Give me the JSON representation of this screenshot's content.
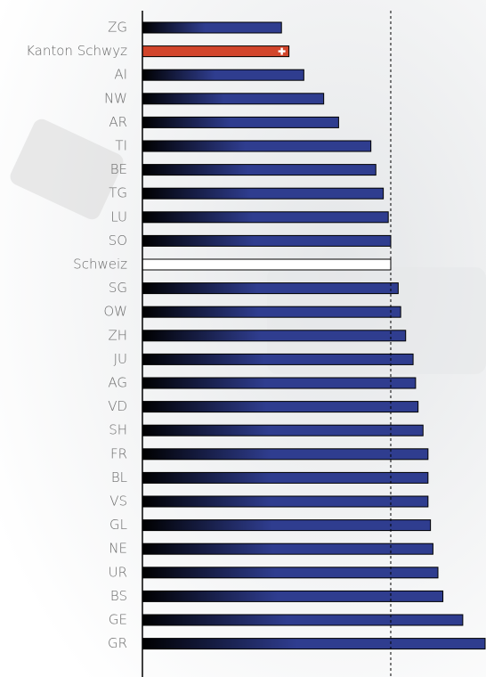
{
  "chart_data": {
    "type": "bar",
    "orientation": "horizontal",
    "categories": [
      "ZG",
      "Kanton Schwyz",
      "AI",
      "NW",
      "AR",
      "TI",
      "BE",
      "TG",
      "LU",
      "SO",
      "Schweiz",
      "SG",
      "OW",
      "ZH",
      "JU",
      "AG",
      "VD",
      "SH",
      "FR",
      "BL",
      "VS",
      "GL",
      "NE",
      "UR",
      "BS",
      "GE",
      "GR"
    ],
    "values": [
      56,
      59,
      65,
      73,
      79,
      92,
      94,
      97,
      99,
      100,
      100,
      103,
      104,
      106,
      109,
      110,
      111,
      113,
      115,
      115,
      115,
      116,
      117,
      119,
      121,
      129,
      138
    ],
    "colors": [
      "#2f3d8f",
      "#d2452b",
      "#2f3d8f",
      "#2f3d8f",
      "#2f3d8f",
      "#2f3d8f",
      "#2f3d8f",
      "#2f3d8f",
      "#2f3d8f",
      "#2f3d8f",
      "#ffffff",
      "#2f3d8f",
      "#2f3d8f",
      "#2f3d8f",
      "#2f3d8f",
      "#2f3d8f",
      "#2f3d8f",
      "#2f3d8f",
      "#2f3d8f",
      "#2f3d8f",
      "#2f3d8f",
      "#2f3d8f",
      "#2f3d8f",
      "#2f3d8f",
      "#2f3d8f",
      "#2f3d8f",
      "#2f3d8f"
    ],
    "gradient_from": "#000000",
    "reference_line": 100,
    "xlim": [
      0,
      138
    ]
  }
}
